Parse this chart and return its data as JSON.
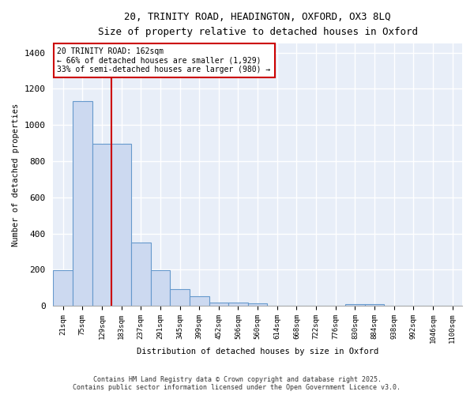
{
  "title_line1": "20, TRINITY ROAD, HEADINGTON, OXFORD, OX3 8LQ",
  "title_line2": "Size of property relative to detached houses in Oxford",
  "xlabel": "Distribution of detached houses by size in Oxford",
  "ylabel": "Number of detached properties",
  "bar_color": "#ccd9f0",
  "bar_edge_color": "#6699cc",
  "background_color": "#e8eef8",
  "grid_color": "#ffffff",
  "categories": [
    "21sqm",
    "75sqm",
    "129sqm",
    "183sqm",
    "237sqm",
    "291sqm",
    "345sqm",
    "399sqm",
    "452sqm",
    "506sqm",
    "560sqm",
    "614sqm",
    "668sqm",
    "722sqm",
    "776sqm",
    "830sqm",
    "884sqm",
    "938sqm",
    "992sqm",
    "1046sqm",
    "1100sqm"
  ],
  "values": [
    195,
    1130,
    895,
    895,
    350,
    195,
    90,
    55,
    20,
    20,
    13,
    0,
    0,
    0,
    0,
    10,
    10,
    0,
    0,
    0,
    0
  ],
  "vline_x": 2.5,
  "vline_color": "#cc0000",
  "annotation_text": "20 TRINITY ROAD: 162sqm\n← 66% of detached houses are smaller (1,929)\n33% of semi-detached houses are larger (980) →",
  "annotation_box_color": "#cc0000",
  "ylim": [
    0,
    1450
  ],
  "yticks": [
    0,
    200,
    400,
    600,
    800,
    1000,
    1200,
    1400
  ],
  "footer_line1": "Contains HM Land Registry data © Crown copyright and database right 2025.",
  "footer_line2": "Contains public sector information licensed under the Open Government Licence v3.0."
}
